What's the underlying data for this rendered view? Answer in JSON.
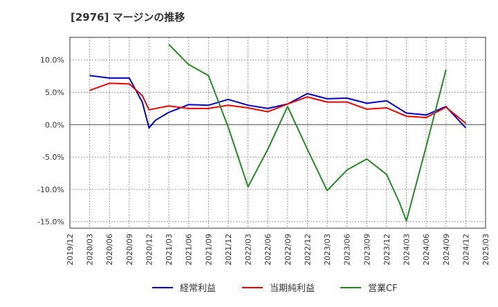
{
  "chart_data": {
    "type": "line",
    "title": "[2976]  マージンの推移",
    "xlabel": "",
    "ylabel": "",
    "ylim": [
      -16,
      13.5
    ],
    "yticks": [
      10,
      5,
      0,
      -5,
      -10,
      -15
    ],
    "ytick_labels": [
      "10.0%",
      "5.0%",
      "0.0%",
      "-5.0%",
      "-10.0%",
      "-15.0%"
    ],
    "x_tick_labels": [
      "2019/12",
      "2020/03",
      "2020/06",
      "2020/09",
      "2020/12",
      "2021/03",
      "2021/06",
      "2021/09",
      "2021/12",
      "2022/03",
      "2022/06",
      "2022/09",
      "2022/12",
      "2023/03",
      "2023/06",
      "2023/09",
      "2023/12",
      "2024/03",
      "2024/06",
      "2024/09",
      "2024/12",
      "2025/03"
    ],
    "grid": true,
    "legend_position": "bottom",
    "series": [
      {
        "name": "経常利益",
        "color": "#0000cc",
        "points": [
          [
            1,
            7.6
          ],
          [
            2,
            7.2
          ],
          [
            3,
            7.2
          ],
          [
            3.66,
            3.5
          ],
          [
            4,
            -0.5
          ],
          [
            4.33,
            0.7
          ],
          [
            5,
            1.9
          ],
          [
            6,
            3.1
          ],
          [
            7,
            3.0
          ],
          [
            8,
            3.9
          ],
          [
            9,
            3.0
          ],
          [
            10,
            2.5
          ],
          [
            11,
            3.2
          ],
          [
            12,
            4.8
          ],
          [
            13,
            4.0
          ],
          [
            14,
            4.1
          ],
          [
            15,
            3.3
          ],
          [
            16,
            3.7
          ],
          [
            17,
            1.8
          ],
          [
            18,
            1.5
          ],
          [
            19,
            2.8
          ],
          [
            20,
            -0.5
          ]
        ]
      },
      {
        "name": "当期純利益",
        "color": "#ee0000",
        "points": [
          [
            1,
            5.3
          ],
          [
            2,
            6.4
          ],
          [
            3,
            6.3
          ],
          [
            3.66,
            4.5
          ],
          [
            4,
            2.3
          ],
          [
            5,
            2.9
          ],
          [
            6,
            2.5
          ],
          [
            7,
            2.5
          ],
          [
            8,
            3.0
          ],
          [
            9,
            2.6
          ],
          [
            10,
            2.0
          ],
          [
            11,
            3.2
          ],
          [
            12,
            4.3
          ],
          [
            13,
            3.5
          ],
          [
            14,
            3.5
          ],
          [
            15,
            2.4
          ],
          [
            16,
            2.6
          ],
          [
            17,
            1.3
          ],
          [
            18,
            1.1
          ],
          [
            19,
            2.7
          ],
          [
            20,
            0.2
          ]
        ]
      },
      {
        "name": "営業CF",
        "color": "#228b22",
        "points": [
          [
            5,
            12.4
          ],
          [
            6,
            9.3
          ],
          [
            7,
            7.6
          ],
          [
            8,
            -0.4
          ],
          [
            9,
            -9.6
          ],
          [
            10,
            -3.8
          ],
          [
            11,
            2.8
          ],
          [
            12,
            -3.8
          ],
          [
            13,
            -10.2
          ],
          [
            14,
            -7.0
          ],
          [
            15,
            -5.3
          ],
          [
            16,
            -7.7
          ],
          [
            16.66,
            -12.1
          ],
          [
            17,
            -14.9
          ],
          [
            18,
            -3.4
          ],
          [
            19,
            8.5
          ]
        ]
      }
    ]
  }
}
